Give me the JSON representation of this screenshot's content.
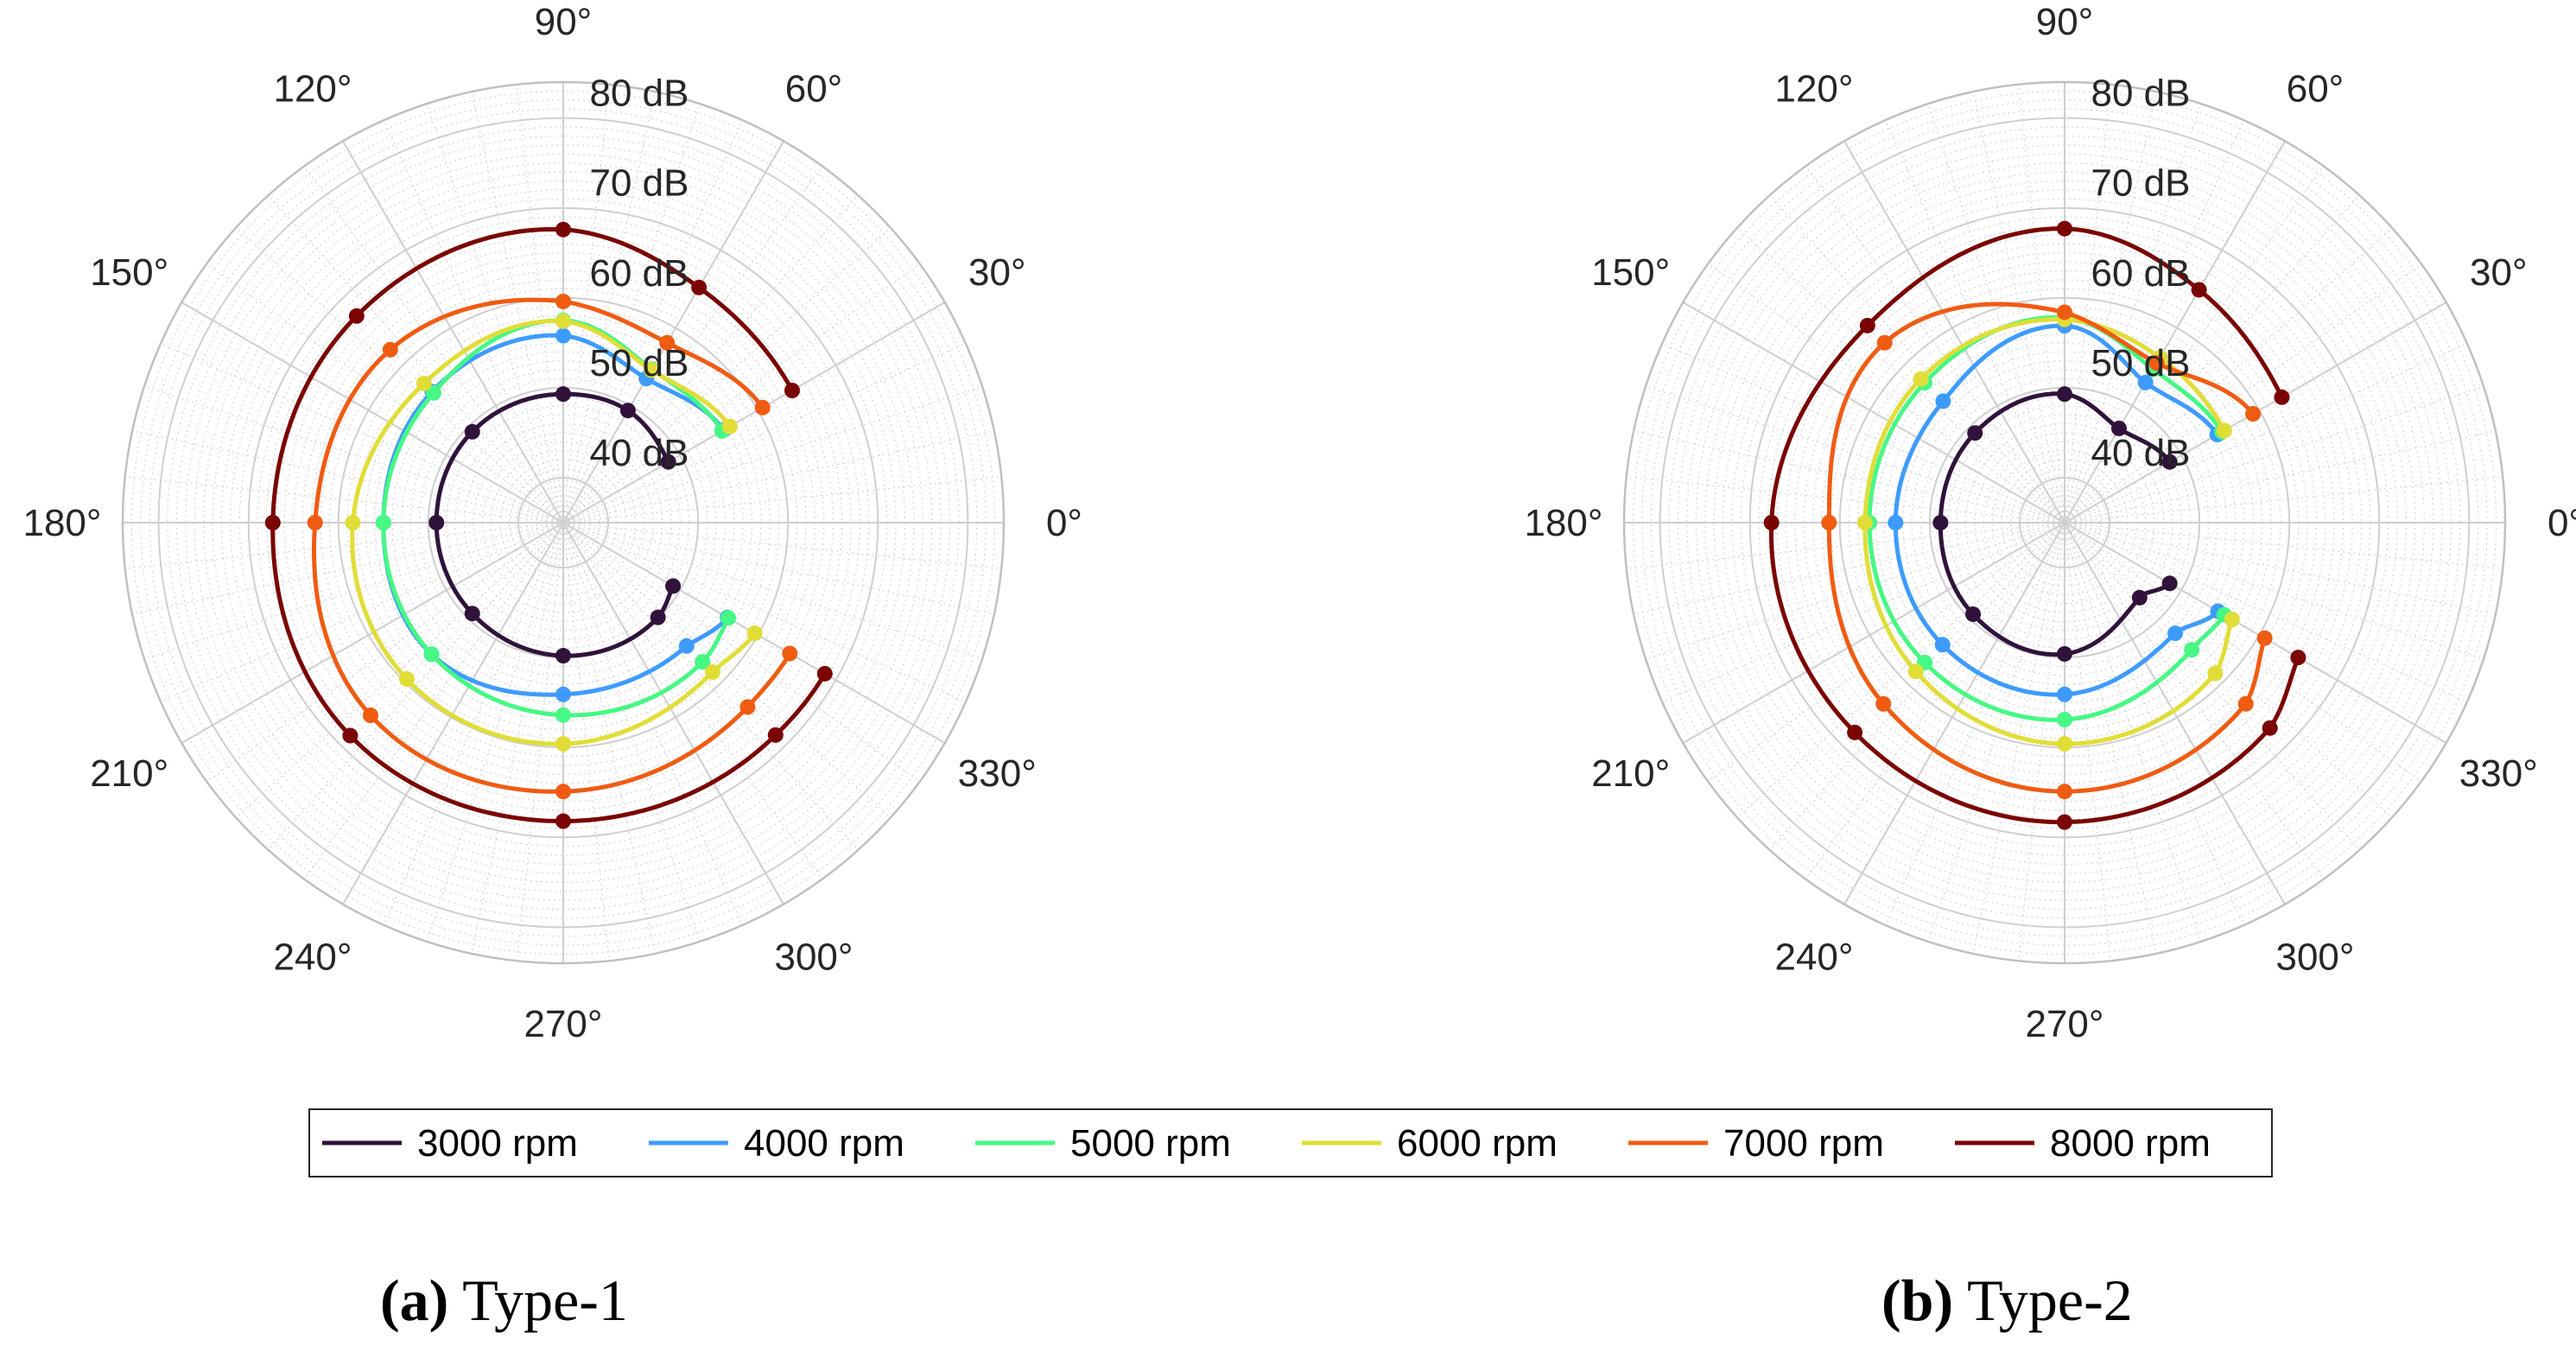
{
  "chart_data": [
    {
      "type": "polar-line",
      "caption_label": "(a)",
      "caption_text": "Type-1",
      "radial_unit": "dB",
      "radial_range": [
        35,
        84
      ],
      "radial_ticks": [
        40,
        50,
        60,
        70,
        80
      ],
      "radial_tick_labels": [
        "40 dB",
        "50 dB",
        "60 dB",
        "70 dB",
        "80 dB"
      ],
      "angle_ticks": [
        0,
        30,
        60,
        90,
        120,
        150,
        180,
        210,
        240,
        270,
        300,
        330
      ],
      "angle_tick_labels": [
        "0°",
        "30°",
        "60°",
        "90°",
        "120°",
        "150°",
        "180°",
        "210°",
        "240°",
        "270°",
        "300°",
        "330°"
      ],
      "series": [
        {
          "name": "3000 rpm",
          "color": "#30123b",
          "theta": [
            30,
            60,
            90,
            135,
            180,
            225,
            270,
            315,
            330
          ],
          "r": [
            48.5,
            49.4,
            49.3,
            49.3,
            49.1,
            49.3,
            49.8,
            49.9,
            49.1
          ]
        },
        {
          "name": "4000 rpm",
          "color": "#3e9bfe",
          "theta": [
            30,
            60,
            90,
            135,
            180,
            225,
            270,
            315,
            330
          ],
          "r": [
            55.6,
            53.5,
            55.8,
            55.6,
            55.0,
            55.7,
            54.1,
            54.4,
            56.1
          ]
        },
        {
          "name": "5000 rpm",
          "color": "#46f884",
          "theta": [
            30,
            60,
            90,
            135,
            180,
            225,
            270,
            315,
            330
          ],
          "r": [
            55.4,
            54.7,
            57.5,
            55.4,
            55.0,
            55.7,
            56.4,
            56.9,
            56.2
          ]
        },
        {
          "name": "6000 rpm",
          "color": "#e1dd37",
          "theta": [
            30,
            60,
            90,
            135,
            180,
            225,
            270,
            315,
            330
          ],
          "r": [
            56.4,
            54.6,
            57.4,
            56.9,
            58.4,
            59.6,
            59.6,
            58.5,
            59.6
          ]
        },
        {
          "name": "7000 rpm",
          "color": "#f05b12",
          "theta": [
            30,
            60,
            90,
            135,
            180,
            225,
            270,
            315,
            330
          ],
          "r": [
            60.6,
            58.1,
            59.6,
            62.2,
            62.6,
            65.3,
            64.9,
            64.0,
            64.1
          ]
        },
        {
          "name": "8000 rpm",
          "color": "#7a0403",
          "theta": [
            30,
            60,
            90,
            135,
            180,
            225,
            270,
            315,
            330
          ],
          "r": [
            64.4,
            65.2,
            67.6,
            67.5,
            67.3,
            68.5,
            68.2,
            68.4,
            68.6
          ]
        }
      ]
    },
    {
      "type": "polar-line",
      "caption_label": "(b)",
      "caption_text": "Type-2",
      "radial_unit": "dB",
      "radial_range": [
        35,
        84
      ],
      "radial_ticks": [
        40,
        50,
        60,
        70,
        80
      ],
      "radial_tick_labels": [
        "40 dB",
        "50 dB",
        "60 dB",
        "70 dB",
        "80 dB"
      ],
      "angle_ticks": [
        0,
        30,
        60,
        90,
        120,
        150,
        180,
        210,
        240,
        270,
        300,
        330
      ],
      "angle_tick_labels": [
        "0°",
        "30°",
        "60°",
        "90°",
        "120°",
        "150°",
        "180°",
        "210°",
        "240°",
        "270°",
        "300°",
        "330°"
      ],
      "series": [
        {
          "name": "3000 rpm",
          "color": "#30123b",
          "theta": [
            30,
            60,
            90,
            135,
            180,
            225,
            270,
            315,
            330
          ],
          "r": [
            48.5,
            47.1,
            49.3,
            49.1,
            48.8,
            49.4,
            49.6,
            46.8,
            48.5
          ]
        },
        {
          "name": "4000 rpm",
          "color": "#3e9bfe",
          "theta": [
            30,
            60,
            90,
            135,
            180,
            225,
            270,
            315,
            330
          ],
          "r": [
            54.6,
            53.0,
            56.9,
            54.1,
            53.8,
            54.2,
            54.1,
            52.4,
            54.7
          ]
        },
        {
          "name": "5000 rpm",
          "color": "#46f884",
          "theta": [
            30,
            60,
            90,
            135,
            180,
            225,
            270,
            315,
            330
          ],
          "r": [
            55.2,
            54.7,
            57.8,
            57.0,
            56.7,
            57.0,
            56.9,
            55.0,
            55.5
          ]
        },
        {
          "name": "6000 rpm",
          "color": "#e1dd37",
          "theta": [
            30,
            60,
            90,
            135,
            180,
            225,
            270,
            315,
            330
          ],
          "r": [
            55.5,
            56.2,
            57.6,
            57.6,
            57.2,
            58.4,
            59.6,
            58.7,
            56.5
          ]
        },
        {
          "name": "7000 rpm",
          "color": "#f05b12",
          "theta": [
            30,
            60,
            90,
            135,
            180,
            225,
            270,
            315,
            330
          ],
          "r": [
            59.2,
            55.5,
            58.4,
            63.3,
            61.2,
            63.5,
            64.9,
            63.5,
            60.7
          ]
        },
        {
          "name": "8000 rpm",
          "color": "#7a0403",
          "theta": [
            30,
            60,
            90,
            135,
            180,
            225,
            270,
            315,
            330
          ],
          "r": [
            62.9,
            64.9,
            67.7,
            66.0,
            67.6,
            68.0,
            68.3,
            67.3,
            65.0
          ]
        }
      ]
    }
  ],
  "legend": {
    "entries": [
      "3000 rpm",
      "4000 rpm",
      "5000 rpm",
      "6000 rpm",
      "7000 rpm",
      "8000 rpm"
    ],
    "colors": [
      "#30123b",
      "#3e9bfe",
      "#46f884",
      "#e1dd37",
      "#f05b12",
      "#7a0403"
    ]
  }
}
